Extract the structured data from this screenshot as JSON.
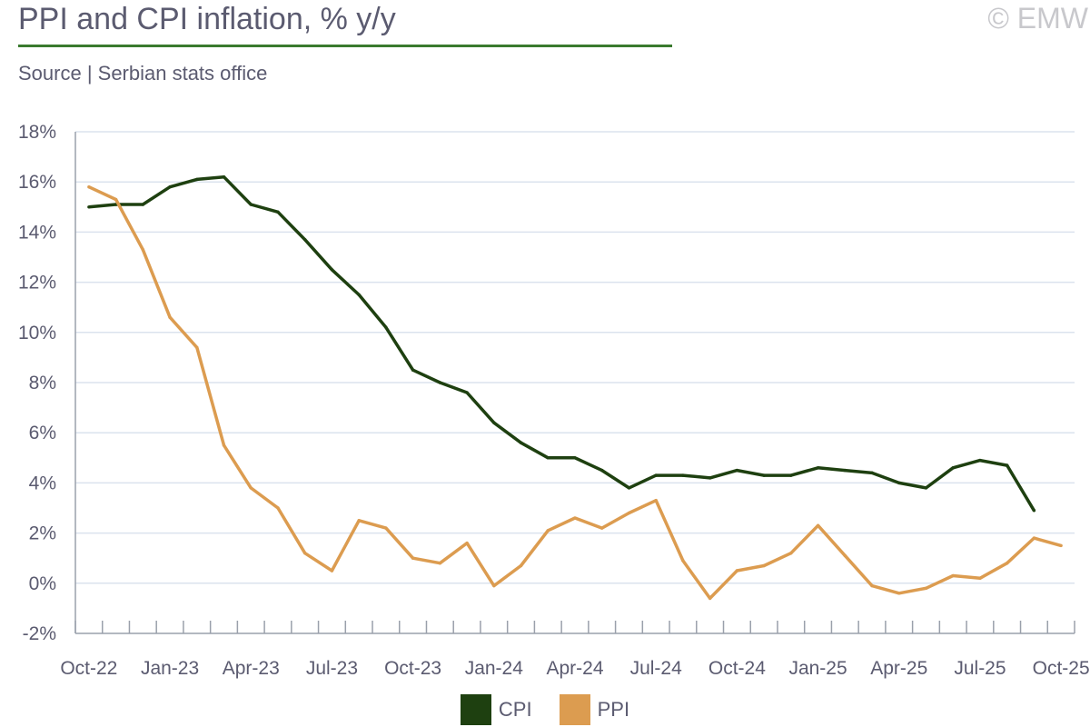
{
  "title": "PPI and CPI inflation, % y/y",
  "copyright": "© EMW",
  "source": "Source | Serbian stats office",
  "chart_data": {
    "type": "line",
    "title": "PPI and CPI inflation, % y/y",
    "xlabel": "",
    "ylabel": "",
    "ylim": [
      -2,
      18
    ],
    "yticks": [
      "-2%",
      "0%",
      "2%",
      "4%",
      "6%",
      "8%",
      "10%",
      "12%",
      "14%",
      "16%",
      "18%"
    ],
    "grid": true,
    "legend_position": "bottom",
    "x": [
      "Oct-22",
      "Nov-22",
      "Dec-22",
      "Jan-23",
      "Feb-23",
      "Mar-23",
      "Apr-23",
      "May-23",
      "Jun-23",
      "Jul-23",
      "Aug-23",
      "Sep-23",
      "Oct-23",
      "Nov-23",
      "Dec-23",
      "Jan-24",
      "Feb-24",
      "Mar-24",
      "Apr-24",
      "May-24",
      "Jun-24",
      "Jul-24",
      "Aug-24",
      "Sep-24",
      "Oct-24",
      "Nov-24",
      "Dec-24",
      "Jan-25",
      "Feb-25",
      "Mar-25",
      "Apr-25",
      "May-25",
      "Jun-25",
      "Jul-25",
      "Aug-25",
      "Sep-25",
      "Oct-25"
    ],
    "xtick_labels": [
      "Oct-22",
      "Jan-23",
      "Apr-23",
      "Jul-23",
      "Oct-23",
      "Jan-24",
      "Apr-24",
      "Jul-24",
      "Oct-24",
      "Jan-25",
      "Apr-25",
      "Jul-25",
      "Oct-25"
    ],
    "series": [
      {
        "name": "CPI",
        "color": "#1e4010",
        "values": [
          15.0,
          15.1,
          15.1,
          15.8,
          16.1,
          16.2,
          15.1,
          14.8,
          13.7,
          12.5,
          11.5,
          10.2,
          8.5,
          8.0,
          7.6,
          6.4,
          5.6,
          5.0,
          5.0,
          4.5,
          3.8,
          4.3,
          4.3,
          4.2,
          4.5,
          4.3,
          4.3,
          4.6,
          4.5,
          4.4,
          4.0,
          3.8,
          4.6,
          4.9,
          4.7,
          2.9,
          null
        ]
      },
      {
        "name": "PPI",
        "color": "#dc9c50",
        "values": [
          15.8,
          15.3,
          13.3,
          10.6,
          9.4,
          5.5,
          3.8,
          3.0,
          1.2,
          0.5,
          2.5,
          2.2,
          1.0,
          0.8,
          1.6,
          -0.1,
          0.7,
          2.1,
          2.6,
          2.2,
          2.8,
          3.3,
          0.9,
          -0.6,
          0.5,
          0.7,
          1.2,
          2.3,
          1.1,
          -0.1,
          -0.4,
          -0.2,
          0.3,
          0.2,
          0.8,
          1.8,
          1.5
        ]
      }
    ]
  }
}
